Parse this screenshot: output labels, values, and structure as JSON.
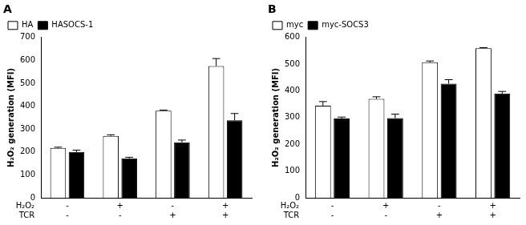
{
  "chart_data": [
    {
      "type": "bar",
      "title": "A",
      "categories": [
        [
          "-",
          "-"
        ],
        [
          "+",
          "-"
        ],
        [
          "-",
          "+"
        ],
        [
          "+",
          "+"
        ]
      ],
      "row_labels": [
        "H₂O₂",
        "TCR"
      ],
      "y_label": "H₂O₂ generation (MFI)",
      "series": [
        {
          "name": "HA",
          "color": "#ffffff",
          "values": [
            218,
            270,
            380,
            575
          ],
          "errors": [
            3,
            5,
            3,
            33
          ]
        },
        {
          "name": "HASOCS-1",
          "color": "#000000",
          "values": [
            200,
            172,
            242,
            338
          ],
          "errors": [
            8,
            5,
            10,
            30
          ]
        }
      ],
      "ylim": [
        0,
        700
      ],
      "yticks": [
        0,
        100,
        200,
        300,
        400,
        500,
        600,
        700
      ],
      "grid": false,
      "legend": "top-left"
    },
    {
      "type": "bar",
      "title": "B",
      "categories": [
        [
          "-",
          "-"
        ],
        [
          "+",
          "-"
        ],
        [
          "-",
          "+"
        ],
        [
          "+",
          "+"
        ]
      ],
      "row_labels": [
        "H₂O₂",
        "TCR"
      ],
      "y_label": "H₂O₂ generation (MFI)",
      "series": [
        {
          "name": "myc",
          "color": "#ffffff",
          "values": [
            345,
            370,
            507,
            560
          ],
          "errors": [
            15,
            8,
            5,
            2
          ]
        },
        {
          "name": "myc-SOCS3",
          "color": "#000000",
          "values": [
            297,
            298,
            427,
            390
          ],
          "errors": [
            5,
            15,
            15,
            8
          ]
        }
      ],
      "ylim": [
        0,
        600
      ],
      "yticks": [
        0,
        100,
        200,
        300,
        400,
        500,
        600
      ],
      "grid": false,
      "legend": "top-left"
    }
  ]
}
